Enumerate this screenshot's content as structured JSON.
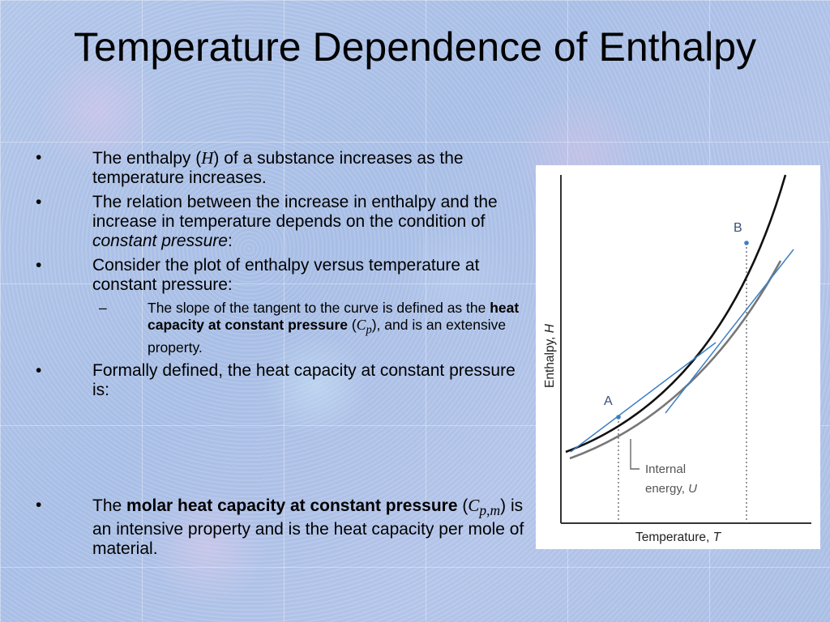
{
  "title": "Temperature Dependence of Enthalpy",
  "bullets": {
    "b1": {
      "pre": "The enthalpy (",
      "sym": "H",
      "post": ") of a substance increases as the temperature increases."
    },
    "b2": {
      "pre": "The relation between the increase in enthalpy and the increase in temperature depends on the condition of ",
      "em": "constant pressure",
      "post": ":"
    },
    "b3": {
      "text": "Consider the plot of enthalpy versus temperature at constant pressure:"
    },
    "b3_sub": {
      "pre": "The slope of the tangent to the curve is defined as the ",
      "strong": "heat capacity at constant pressure",
      "mid": " (",
      "sym": "C",
      "sub": "p",
      "post": "), and is an extensive property."
    },
    "b4": {
      "text": "Formally defined, the heat capacity at constant pressure is:"
    },
    "b5": {
      "pre": "The ",
      "strong": "molar heat capacity at constant pressure",
      "mid": " (",
      "sym": "C",
      "sub": "p,m",
      "post": ") is an intensive property and is the heat capacity per mole of material."
    }
  },
  "bullet_glyph": "•",
  "dash_glyph": "–",
  "figure": {
    "ylabel_text": "Enthalpy, ",
    "ylabel_sym": "H",
    "xlabel_text": "Temperature, ",
    "xlabel_sym": "T",
    "point_a": "A",
    "point_b": "B",
    "u_label_line1": "Internal",
    "u_label_line2_text": "energy, ",
    "u_label_sym": "U",
    "colors": {
      "enthalpy": "#111111",
      "internal_energy": "#777777",
      "tangent": "#3b7fc4",
      "axes": "#333333"
    }
  }
}
